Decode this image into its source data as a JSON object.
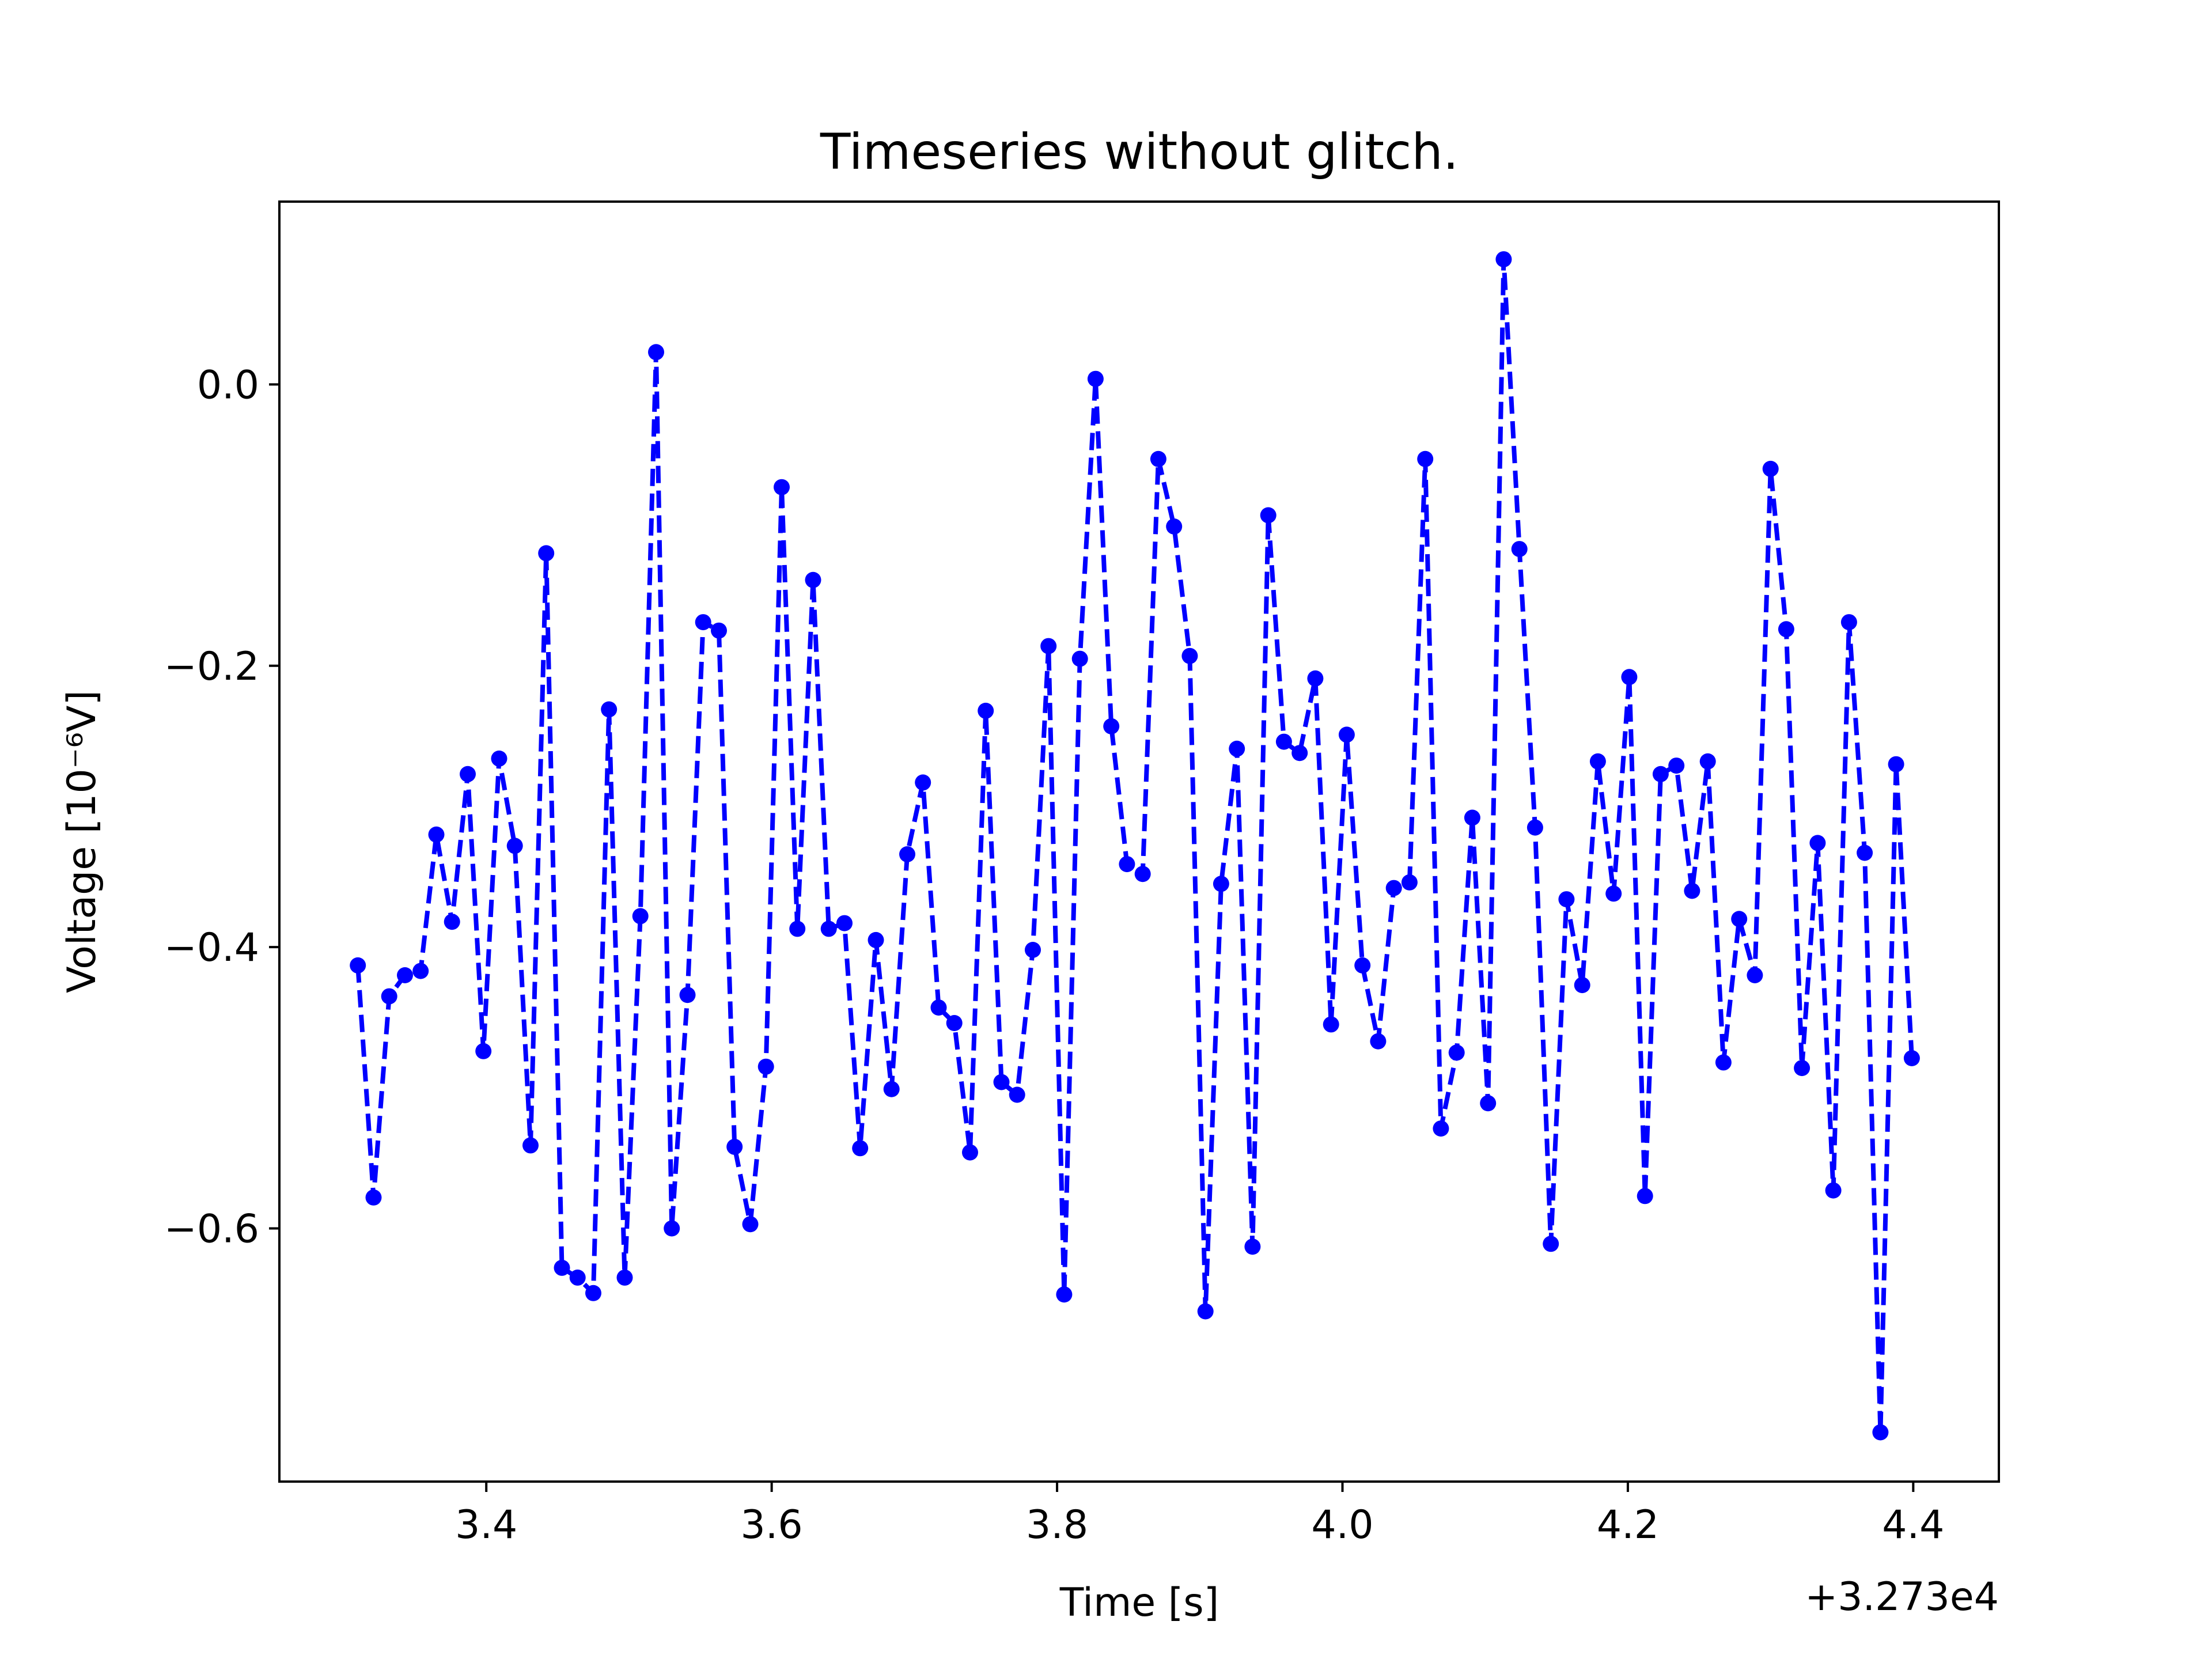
{
  "chart_data": {
    "type": "line",
    "title": "Timeseries without glitch.",
    "xlabel": "Time [s]",
    "ylabel": "Voltage [10⁻⁶V]",
    "x_offset_label": "+3.273e4",
    "xlim": [
      3.255,
      4.46
    ],
    "ylim": [
      -0.78,
      0.13
    ],
    "x_ticks": [
      3.4,
      3.6,
      3.8,
      4.0,
      4.2,
      4.4
    ],
    "x_tick_labels": [
      "3.4",
      "3.6",
      "3.8",
      "4.0",
      "4.2",
      "4.4"
    ],
    "y_ticks": [
      0.0,
      -0.2,
      -0.4,
      -0.6
    ],
    "y_tick_labels": [
      "0.0",
      "−0.2",
      "−0.4",
      "−0.6"
    ],
    "grid": false,
    "legend": "none",
    "line_color": "#0000ff",
    "line_style": "dashed",
    "marker": "circle",
    "series": [
      {
        "x": [
          3.31,
          3.321,
          3.332,
          3.343,
          3.354,
          3.365,
          3.376,
          3.387,
          3.398,
          3.409,
          3.42,
          3.431,
          3.442,
          3.453,
          3.464,
          3.475,
          3.486,
          3.497,
          3.508,
          3.519,
          3.53,
          3.541,
          3.552,
          3.563,
          3.574,
          3.585,
          3.596,
          3.607,
          3.618,
          3.629,
          3.64,
          3.651,
          3.662,
          3.673,
          3.684,
          3.695,
          3.706,
          3.717,
          3.728,
          3.739,
          3.75,
          3.761,
          3.772,
          3.783,
          3.794,
          3.805,
          3.816,
          3.827,
          3.838,
          3.849,
          3.86,
          3.871,
          3.882,
          3.893,
          3.904,
          3.915,
          3.926,
          3.937,
          3.948,
          3.959,
          3.97,
          3.981,
          3.992,
          4.003,
          4.014,
          4.025,
          4.036,
          4.047,
          4.058,
          4.069,
          4.08,
          4.091,
          4.102,
          4.113,
          4.124,
          4.135,
          4.146,
          4.157,
          4.168,
          4.179,
          4.19,
          4.201,
          4.212,
          4.223,
          4.234,
          4.245,
          4.256,
          4.267,
          4.278,
          4.289,
          4.3,
          4.311,
          4.322,
          4.333,
          4.344,
          4.355,
          4.366,
          4.377,
          4.388,
          4.399
        ],
        "y": [
          -0.413,
          -0.578,
          -0.435,
          -0.42,
          -0.417,
          -0.32,
          -0.382,
          -0.277,
          -0.474,
          -0.266,
          -0.328,
          -0.541,
          -0.12,
          -0.628,
          -0.635,
          -0.646,
          -0.231,
          -0.635,
          -0.378,
          0.023,
          -0.6,
          -0.434,
          -0.169,
          -0.175,
          -0.542,
          -0.597,
          -0.485,
          -0.073,
          -0.387,
          -0.139,
          -0.387,
          -0.383,
          -0.543,
          -0.395,
          -0.501,
          -0.334,
          -0.283,
          -0.443,
          -0.454,
          -0.546,
          -0.232,
          -0.496,
          -0.505,
          -0.402,
          -0.186,
          -0.647,
          -0.195,
          0.004,
          -0.243,
          -0.341,
          -0.348,
          -0.053,
          -0.101,
          -0.193,
          -0.659,
          -0.355,
          -0.259,
          -0.613,
          -0.093,
          -0.254,
          -0.262,
          -0.209,
          -0.455,
          -0.249,
          -0.413,
          -0.467,
          -0.358,
          -0.354,
          -0.053,
          -0.529,
          -0.475,
          -0.308,
          -0.511,
          0.089,
          -0.117,
          -0.315,
          -0.611,
          -0.366,
          -0.427,
          -0.268,
          -0.362,
          -0.208,
          -0.577,
          -0.277,
          -0.271,
          -0.36,
          -0.268,
          -0.482,
          -0.38,
          -0.42,
          -0.06,
          -0.174,
          -0.486,
          -0.326,
          -0.573,
          -0.169,
          -0.333,
          -0.745,
          -0.27,
          -0.479
        ]
      }
    ]
  }
}
